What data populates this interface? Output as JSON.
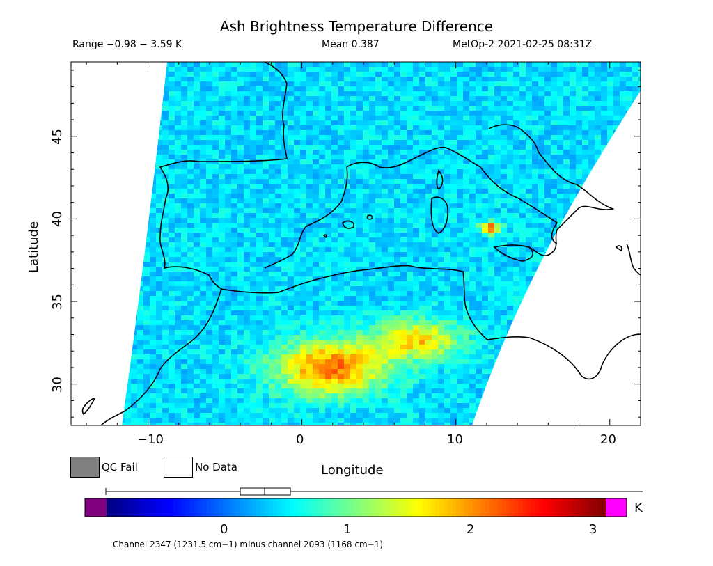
{
  "header": {
    "title": "Ash Brightness Temperature Difference",
    "range": "Range −0.98 − 3.59 K",
    "mean": "Mean 0.387",
    "satellite_time": "MetOp-2 2021-02-25 08:31Z"
  },
  "map": {
    "x_axis_label": "Longitude",
    "y_axis_label": "Latitude",
    "x_ticks": [
      "−10",
      "0",
      "10",
      "20"
    ],
    "y_ticks": [
      "45",
      "40",
      "35",
      "30"
    ],
    "lon_range": [
      -15,
      22
    ],
    "lat_range": [
      27.5,
      49.5
    ]
  },
  "legend": {
    "qc_fail_label": "QC Fail",
    "qc_fail_color": "#808080",
    "no_data_label": "No Data",
    "no_data_color": "#ffffff"
  },
  "colorbar": {
    "unit": "K",
    "tick_labels": [
      "0",
      "1",
      "2",
      "3"
    ],
    "tick_values": [
      0,
      1,
      2,
      3
    ],
    "min": -1.15,
    "max": 3.3,
    "below_color": "#800080",
    "above_color": "#ff00ff",
    "caption": "Channel 2347 (1231.5 cm−1) minus channel 2093 (1168 cm−1)"
  }
}
